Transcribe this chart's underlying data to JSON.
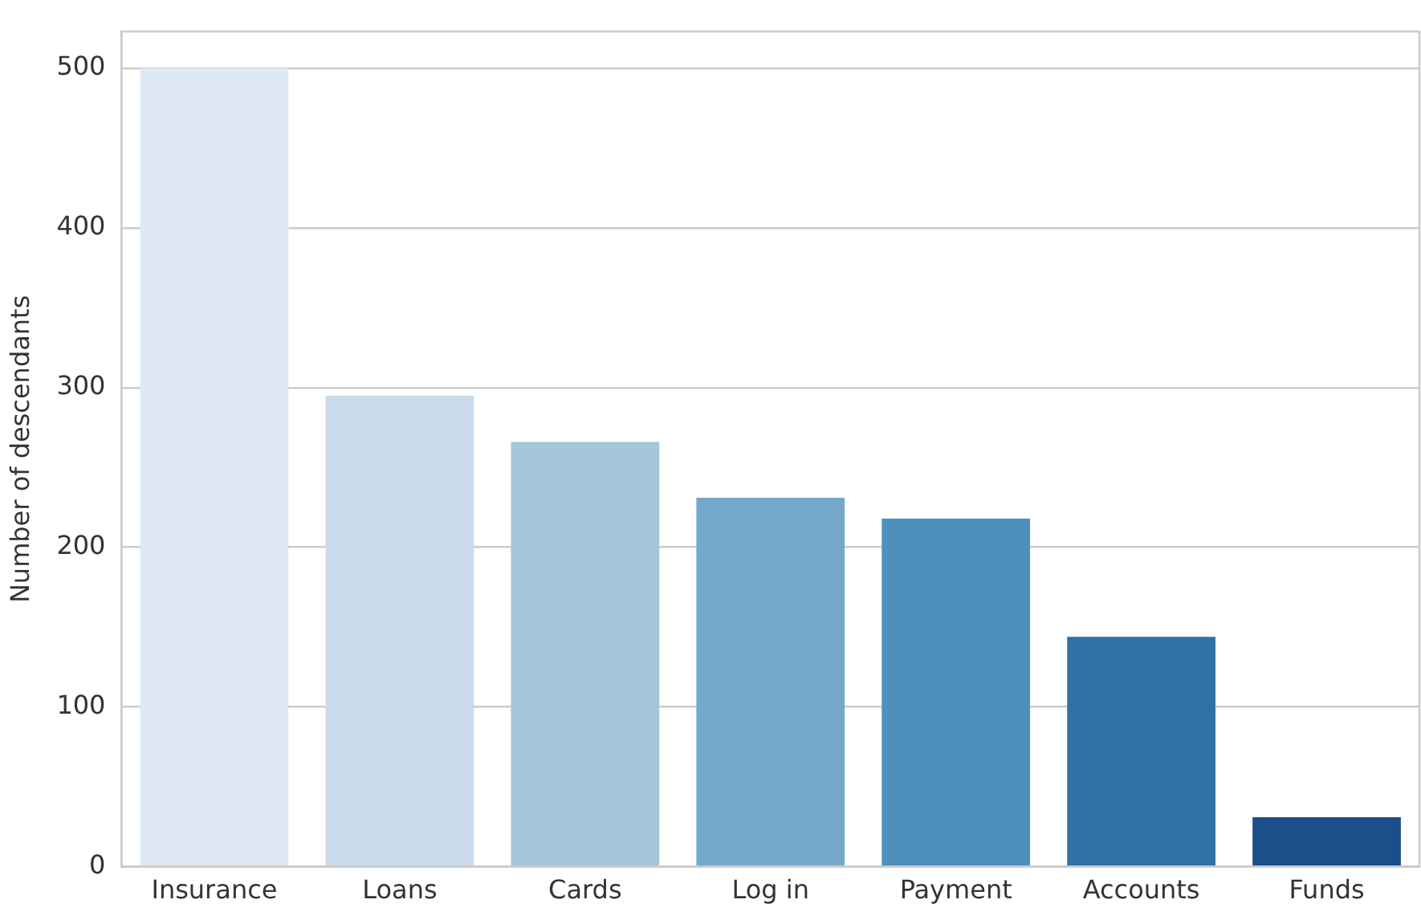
{
  "chart_data": {
    "type": "bar",
    "ylabel": "Number of descendants",
    "categories": [
      "Insurance",
      "Loans",
      "Cards",
      "Log in",
      "Payment",
      "Accounts",
      "Funds"
    ],
    "values": [
      500,
      295,
      266,
      231,
      218,
      144,
      31
    ],
    "colors": [
      "#dfe9f4",
      "#c9dbea",
      "#a3c6d9",
      "#74a9cb",
      "#4f8fbc",
      "#3070a3",
      "#1a4f8a"
    ],
    "ylim": [
      0,
      523
    ],
    "yticks": [
      0,
      100,
      200,
      300,
      400,
      500
    ],
    "grid": "y",
    "legend": false
  }
}
